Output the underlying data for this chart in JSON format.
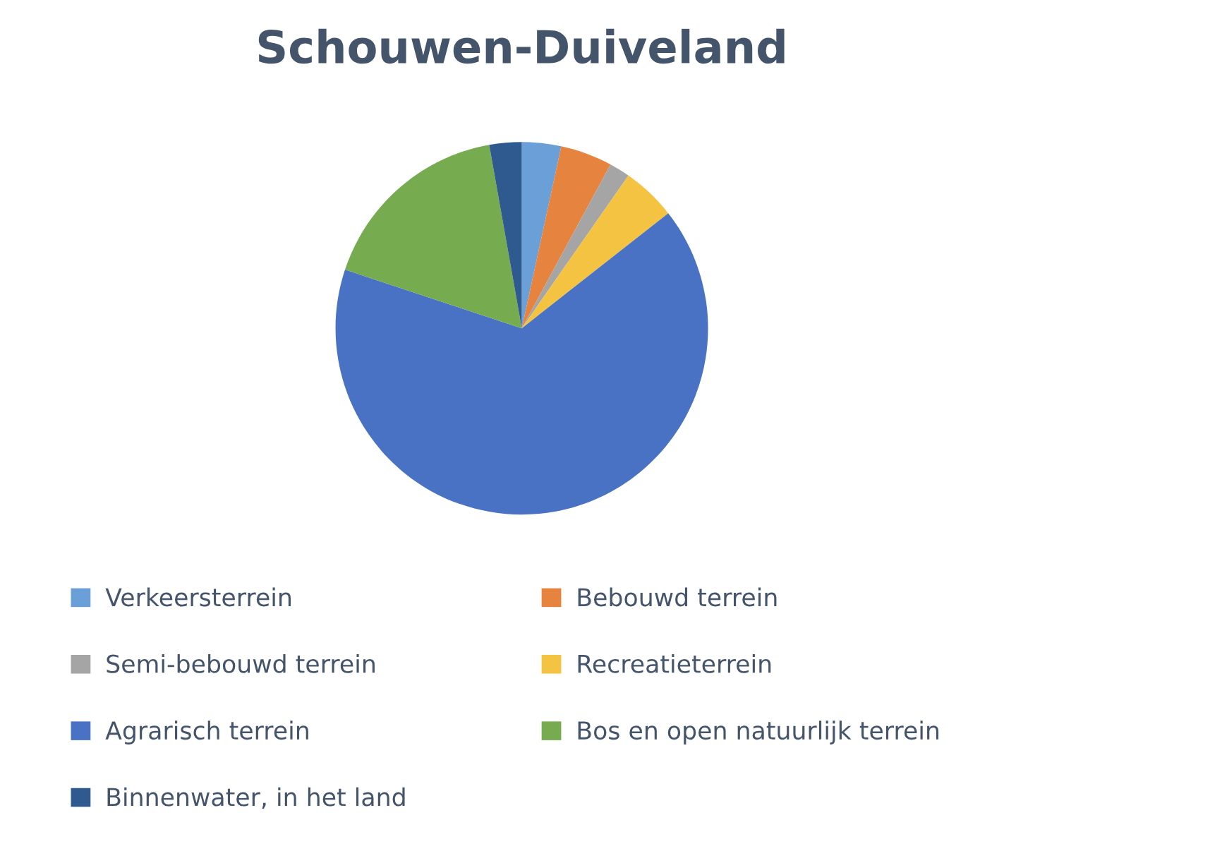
{
  "chart_data": {
    "type": "pie",
    "title": "Schouwen-Duiveland",
    "categories": [
      "Verkeersterrein",
      "Bebouwd terrein",
      "Semi-bebouwd terrein",
      "Recreatieterrein",
      "Agrarisch terrein",
      "Bos en open natuurlijk terrein",
      "Binnenwater, in het land"
    ],
    "values": [
      3.4,
      4.5,
      1.8,
      4.7,
      65.7,
      17.1,
      2.8
    ],
    "colors": [
      "#6a9fd8",
      "#e6843f",
      "#a5a5a5",
      "#f5c342",
      "#4a72c4",
      "#77ab50",
      "#2f5a8f"
    ],
    "legend": "bottom"
  }
}
